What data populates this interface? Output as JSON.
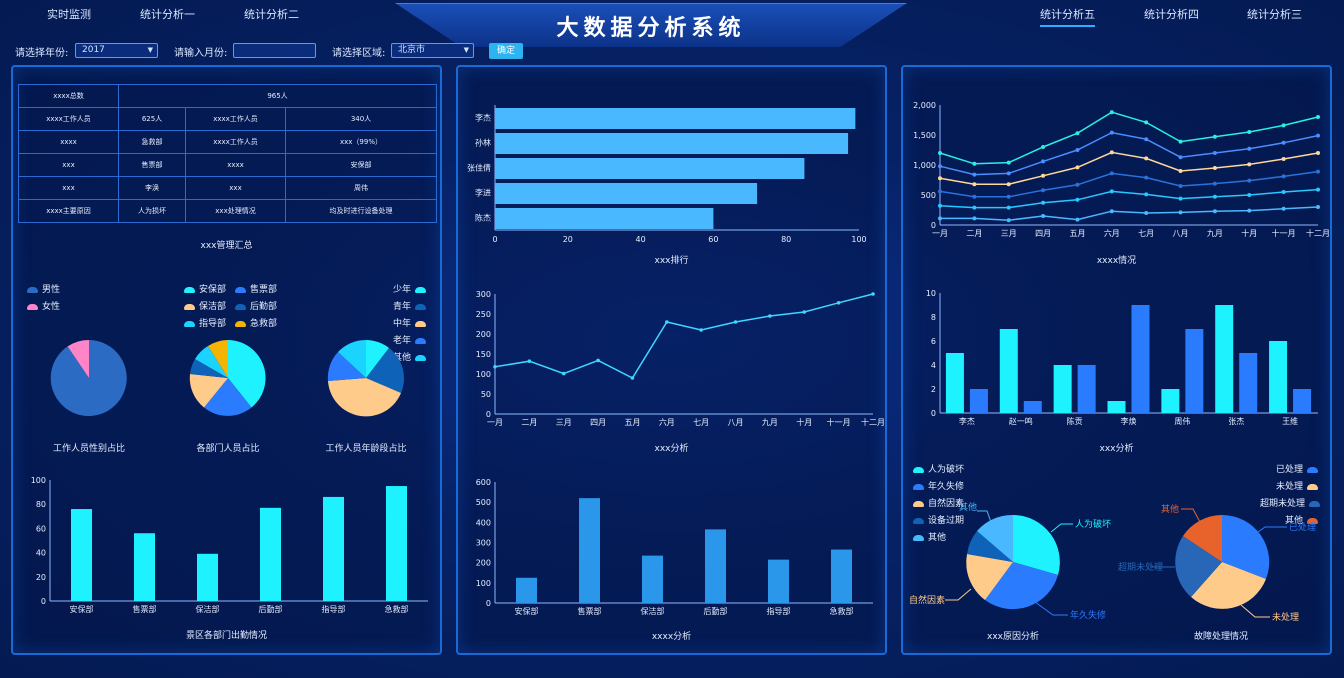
{
  "nav": {
    "left": [
      "实时监测",
      "统计分析一",
      "统计分析二"
    ],
    "right": [
      "统计分析五",
      "统计分析四",
      "统计分析三"
    ],
    "active": "统计分析五"
  },
  "title": "大数据分析系统",
  "filters": {
    "year_label": "请选择年份:",
    "year_value": "2017",
    "month_label": "请输入月份:",
    "month_value": "",
    "region_label": "请选择区域:",
    "region_value": "北京市",
    "confirm": "确定"
  },
  "summary_table": {
    "rows": [
      [
        "xxxx总数",
        "965人"
      ],
      [
        "xxxx工作人员",
        "625人",
        "xxxx工作人员",
        "340人"
      ],
      [
        "xxxx",
        "急救部",
        "xxxx工作人员",
        "xxx（99%）"
      ],
      [
        "xxx",
        "售票部",
        "xxxx",
        "安保部"
      ],
      [
        "xxx",
        "李涣",
        "xxx",
        "周伟"
      ],
      [
        "xxxx主要原因",
        "人为损坏",
        "xxx处理情况",
        "均及时进行设备处理"
      ]
    ],
    "caption": "xxx管理汇总"
  },
  "pies_left": {
    "gender": {
      "legend": [
        "男性",
        "女性"
      ],
      "caption": "工作人员性别占比",
      "colors": [
        "#2c6bc4",
        "#ff85c8"
      ]
    },
    "dept": {
      "legend": [
        "安保部",
        "售票部",
        "保洁部",
        "后勤部",
        "指导部",
        "急救部"
      ],
      "caption": "各部门人员占比",
      "colors": [
        "#1ef2ff",
        "#2b7bff",
        "#ffcb8a",
        "#0e63b8",
        "#1bd3ff",
        "#f5b400"
      ]
    },
    "age": {
      "legend": [
        "少年",
        "青年",
        "中年",
        "老年",
        "其他"
      ],
      "caption": "工作人员年龄段占比",
      "colors": [
        "#1ef2ff",
        "#0e63b8",
        "#ffcb8a",
        "#2b7bff",
        "#1bd3ff"
      ]
    }
  },
  "dept_attendance": {
    "caption": "景区各部门出勤情况",
    "chart_data": {
      "type": "bar",
      "categories": [
        "安保部",
        "售票部",
        "保洁部",
        "后勤部",
        "指导部",
        "急救部"
      ],
      "values": [
        76,
        56,
        39,
        77,
        86,
        95
      ],
      "ylim": [
        0,
        100
      ],
      "yticks": [
        0,
        20,
        40,
        60,
        80,
        100
      ],
      "color": "#1ef2ff"
    }
  },
  "ranking": {
    "caption": "xxx排行",
    "chart_data": {
      "type": "bar",
      "orientation": "horizontal",
      "categories": [
        "李杰",
        "孙林",
        "张佳倩",
        "李进",
        "陈杰"
      ],
      "values": [
        99,
        97,
        85,
        72,
        60
      ],
      "xlim": [
        0,
        100
      ],
      "xticks": [
        0,
        20,
        40,
        60,
        80,
        100
      ],
      "color": "#4ab8ff"
    }
  },
  "xxx_analysis": {
    "caption": "xxx分析",
    "chart_data": {
      "type": "line",
      "categories": [
        "一月",
        "二月",
        "三月",
        "四月",
        "五月",
        "六月",
        "七月",
        "八月",
        "九月",
        "十月",
        "十一月",
        "十二月"
      ],
      "values": [
        118,
        132,
        101,
        134,
        90,
        230,
        210,
        230,
        245,
        255,
        278,
        300
      ],
      "ylim": [
        0,
        300
      ],
      "yticks": [
        0,
        50,
        100,
        150,
        200,
        250,
        300
      ],
      "color": "#3fd6ff"
    }
  },
  "xxxx_analysis": {
    "caption": "xxxx分析",
    "chart_data": {
      "type": "bar",
      "categories": [
        "安保部",
        "售票部",
        "保洁部",
        "后勤部",
        "指导部",
        "急救部"
      ],
      "values": [
        125,
        520,
        235,
        365,
        215,
        265
      ],
      "ylim": [
        0,
        600
      ],
      "yticks": [
        0,
        100,
        200,
        300,
        400,
        500,
        600
      ],
      "color": "#2a97ea"
    }
  },
  "xxxx_status": {
    "caption": "xxxx情况",
    "chart_data": {
      "type": "line",
      "categories": [
        "一月",
        "二月",
        "三月",
        "四月",
        "五月",
        "六月",
        "七月",
        "八月",
        "九月",
        "十月",
        "十一月",
        "十二月"
      ],
      "ylim": [
        0,
        2000
      ],
      "yticks": [
        "0",
        "500",
        "1,000",
        "1,500",
        "2,000"
      ],
      "series": [
        {
          "values": [
            1200,
            1020,
            1040,
            1300,
            1530,
            1880,
            1710,
            1390,
            1470,
            1550,
            1660,
            1800
          ],
          "color": "#29f0e0"
        },
        {
          "values": [
            980,
            840,
            860,
            1060,
            1250,
            1540,
            1430,
            1130,
            1200,
            1270,
            1370,
            1490
          ],
          "color": "#4a8dff"
        },
        {
          "values": [
            780,
            680,
            680,
            820,
            960,
            1210,
            1110,
            900,
            950,
            1010,
            1100,
            1200
          ],
          "color": "#ffd79a"
        },
        {
          "values": [
            560,
            470,
            470,
            580,
            670,
            860,
            790,
            650,
            690,
            740,
            810,
            890
          ],
          "color": "#2a72d9"
        },
        {
          "values": [
            320,
            290,
            290,
            370,
            420,
            560,
            510,
            440,
            470,
            500,
            550,
            590
          ],
          "color": "#29c8ff"
        },
        {
          "values": [
            110,
            110,
            80,
            150,
            90,
            230,
            200,
            210,
            230,
            240,
            270,
            300
          ],
          "color": "#4ab8ff"
        }
      ]
    }
  },
  "xxx_analysis_right": {
    "caption": "xxx分析",
    "chart_data": {
      "type": "bar",
      "categories": [
        "李杰",
        "赵一鸣",
        "陈贡",
        "李焕",
        "周伟",
        "张杰",
        "王维"
      ],
      "series": [
        {
          "values": [
            5,
            7,
            4,
            1,
            2,
            9,
            6
          ],
          "color": "#1ef2ff"
        },
        {
          "values": [
            2,
            1,
            4,
            9,
            7,
            5,
            2
          ],
          "color": "#2b7bff"
        }
      ],
      "ylim": [
        0,
        10
      ],
      "yticks": [
        0,
        2,
        4,
        6,
        8,
        10
      ]
    }
  },
  "cause_pie": {
    "caption": "xxx原因分析",
    "legend": [
      "人为破坏",
      "年久失修",
      "自然因素",
      "设备过期",
      "其他"
    ],
    "labels": [
      "人为破坏",
      "年久失修",
      "自然因素",
      "其他"
    ],
    "colors": [
      "#1ef2ff",
      "#2b7bff",
      "#ffcb8a",
      "#0e63b8",
      "#4ab8ff"
    ],
    "chart_data": {
      "type": "pie",
      "categories": [
        "人为破坏",
        "年久失修",
        "自然因素",
        "设备过期",
        "其他"
      ],
      "values": [
        28,
        24,
        24,
        10,
        14
      ]
    }
  },
  "fault_pie": {
    "caption": "故障处理情况",
    "legend": [
      "已处理",
      "未处理",
      "超期未处理",
      "其他"
    ],
    "labels": [
      "已处理",
      "未处理",
      "超期未处理",
      "其他"
    ],
    "colors": [
      "#2b7bff",
      "#ffcb8a",
      "#2866b8",
      "#e8632c"
    ],
    "chart_data": {
      "type": "pie",
      "categories": [
        "已处理",
        "未处理",
        "超期未处理",
        "其他"
      ],
      "values": [
        32,
        32,
        22,
        14
      ]
    }
  }
}
